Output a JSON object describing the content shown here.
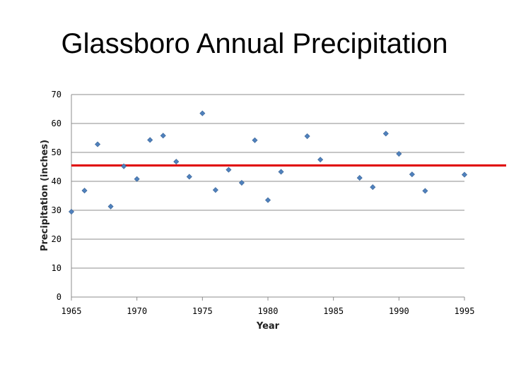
{
  "chart_data": {
    "type": "scatter",
    "title": "Glassboro Annual Precipitation",
    "xlabel": "Year",
    "ylabel": "Precipitation (inches)",
    "xlim": [
      1965,
      1995
    ],
    "ylim": [
      0,
      70
    ],
    "xticks": [
      1965,
      1970,
      1975,
      1980,
      1985,
      1990,
      1995
    ],
    "yticks": [
      0,
      10,
      20,
      30,
      40,
      50,
      60,
      70
    ],
    "grid": true,
    "series": [
      {
        "marker": "diamond",
        "color": "#4f81bd",
        "points": [
          [
            1965,
            29.5
          ],
          [
            1966,
            36.8
          ],
          [
            1967,
            52.8
          ],
          [
            1968,
            31.3
          ],
          [
            1969,
            45.2
          ],
          [
            1970,
            40.8
          ],
          [
            1971,
            54.3
          ],
          [
            1972,
            55.8
          ],
          [
            1973,
            46.8
          ],
          [
            1974,
            41.6
          ],
          [
            1975,
            63.5
          ],
          [
            1976,
            37.0
          ],
          [
            1977,
            44.0
          ],
          [
            1978,
            39.5
          ],
          [
            1979,
            54.2
          ],
          [
            1980,
            33.5
          ],
          [
            1981,
            43.3
          ],
          [
            1983,
            55.6
          ],
          [
            1984,
            47.5
          ],
          [
            1987,
            41.2
          ],
          [
            1988,
            38.0
          ],
          [
            1989,
            56.5
          ],
          [
            1990,
            49.5
          ],
          [
            1991,
            42.4
          ],
          [
            1992,
            36.7
          ],
          [
            1995,
            42.3
          ]
        ]
      }
    ],
    "reference_line": {
      "y": 45.5,
      "color": "#e00000"
    }
  }
}
